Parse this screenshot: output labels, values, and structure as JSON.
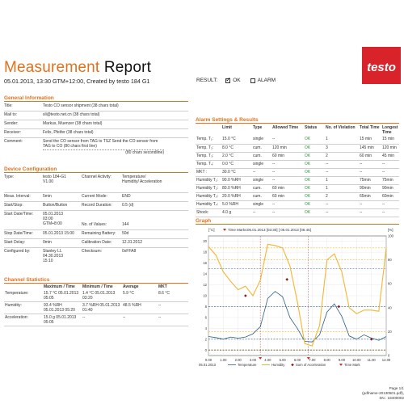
{
  "header": {
    "title_part1": "Measurement",
    "title_part2": "Report",
    "subtitle": "05.01.2013, 13:30 GTM+12:00, Created by testo 184 G1",
    "logo_text": "testo",
    "result_label": "RESULT:",
    "result_ok": "OK",
    "result_alarm": "ALARM"
  },
  "general": {
    "heading": "General Information",
    "rows": [
      {
        "key": "Title:",
        "value": "Testo CO sensor shipment (38 chars total)"
      },
      {
        "key": "Mail to:",
        "value": "sli@testo.net.cn (38 chars total)"
      },
      {
        "key": "Sender:",
        "value": "Markus, Muenzer (38 chars total)"
      },
      {
        "key": "Receiver:",
        "value": "Felix, Pfeifer (38 chars total)"
      },
      {
        "key": "Comment:",
        "value": "Send the CO sensor from TAG to TSZ Send the CO sensor from TAG to CO (80 chars first line)",
        "value2": "(80 chars secondline)"
      }
    ]
  },
  "device": {
    "heading": "Device Configuration",
    "rows": [
      {
        "k1": "Type:",
        "v1": "testo 184-G1 V1.00",
        "k2": "Channel Activity:",
        "v2": "Temperature/ Humidity/ Acceleration"
      },
      {
        "k1": "Meas. Interval:",
        "v1": "5min",
        "k2": "Current Mode:",
        "v2": "END"
      },
      {
        "k1": "Start/Stop:",
        "v1": "Button/Button",
        "k2": "Record Duration:",
        "v2": "0.5 (d)"
      },
      {
        "k1": "Start Date/Time:",
        "v1": "05.01.2013 03:00 GTM+8:00",
        "k2": "No. of Values:",
        "v2": "144"
      },
      {
        "k1": "Stop Date/Time:",
        "v1": "05.01.2013 15:00",
        "k2": "Remaining Battery:",
        "v2": "50d"
      },
      {
        "k1": "Start Delay:",
        "v1": "0min",
        "k2": "Calibration Date:",
        "v2": "12.31.2012"
      },
      {
        "k1": "Configured by:",
        "v1": "Stanley LL 04.30.2013 15:10",
        "k2": "Checksum:",
        "v2": "0xFFA8"
      }
    ]
  },
  "stats": {
    "heading": "Channel Statistics",
    "columns": [
      "",
      "Maximum / Time",
      "Minimum / Time",
      "Average",
      "MKT"
    ],
    "rows": [
      {
        "name": "Temperature:",
        "max": "15.7 °C 05.01.2013 05:05",
        "min": "1.4 °C 05.01.2013 03:20",
        "avg": "5.9 °C",
        "mkt": "8.6 °C"
      },
      {
        "name": "Humidity:",
        "max": "93.4 %RH 05.01.2013 05:20",
        "min": "3.7 %RH 05.01.2013 01:40",
        "avg": "48.5 %RH",
        "mkt": "--"
      },
      {
        "name": "Acceleration:",
        "max": "15.0 g 05.01.2013 05:05",
        "min": "--",
        "avg": "--",
        "mkt": "--"
      }
    ]
  },
  "alarm": {
    "heading": "Alarm  Settings & Results",
    "columns": [
      "",
      "Limit",
      "Type",
      "Allowed Time",
      "Status",
      "No. of Violation",
      "Total Time",
      "Longest Time"
    ],
    "rows": [
      {
        "name": "Temp. T₁:",
        "limit": "15.0 °C",
        "type": "single",
        "allowed": "--",
        "status": "OK",
        "viol": "1",
        "total": "15 min",
        "longest": "15 min"
      },
      {
        "name": "Temp. T₂:",
        "limit": "8.0 °C",
        "type": "cum.",
        "allowed": "120 min",
        "status": "OK",
        "viol": "3",
        "total": "145 min",
        "longest": "120 min"
      },
      {
        "name": "Temp. T₃:",
        "limit": "2.0 °C",
        "type": "cum.",
        "allowed": "60 min",
        "status": "OK",
        "viol": "2",
        "total": "60 min",
        "longest": "45 min"
      },
      {
        "name": "Temp. T₄:",
        "limit": "0.0 °C",
        "type": "single",
        "allowed": "--",
        "status": "OK",
        "viol": "--",
        "total": "--",
        "longest": "--"
      },
      {
        "name": "MKT :",
        "limit": "30.0 °C",
        "type": "--",
        "allowed": "--",
        "status": "OK",
        "viol": "--",
        "total": "--",
        "longest": "--"
      },
      {
        "name": "Humidity T₁:",
        "limit": "90.0 %RH",
        "type": "single",
        "allowed": "--",
        "status": "OK",
        "viol": "1",
        "total": "75min",
        "longest": "75min"
      },
      {
        "name": "Humidity T₂:",
        "limit": "80.0 %RH",
        "type": "cum.",
        "allowed": "60 min",
        "status": "OK",
        "viol": "1",
        "total": "90min",
        "longest": "90min"
      },
      {
        "name": "Humidity T₃:",
        "limit": "20.0 %RH",
        "type": "cum.",
        "allowed": "60 min",
        "status": "OK",
        "viol": "2",
        "total": "65min",
        "longest": "60min"
      },
      {
        "name": "Humidity T₄:",
        "limit": "5.0 %RH",
        "type": "single",
        "allowed": "--",
        "status": "OK",
        "viol": "--",
        "total": "--",
        "longest": "--"
      },
      {
        "name": "Shock:",
        "limit": "4.0 g",
        "type": "--",
        "allowed": "--",
        "status": "OK",
        "viol": "--",
        "total": "--",
        "longest": "--"
      }
    ]
  },
  "graph": {
    "heading": "Graph",
    "time_marks_label": "Time Marks:",
    "time_marks_value": "05.01.2013 [03:30] [  05.01.2013 [06:45]",
    "left_unit": "[°C]",
    "right_unit": "[%]",
    "date_label": "05.01.2013",
    "legend": [
      "Temperature",
      "Humidity",
      "Sum of Acceleration",
      "Time Mark"
    ]
  },
  "chart_data": {
    "type": "line",
    "x": [
      "0.00",
      "0.30",
      "1.00",
      "1.30",
      "2.00",
      "2.30",
      "3.00",
      "3.30",
      "4.00",
      "4.30",
      "5.00",
      "5.30",
      "6.00",
      "6.30",
      "7.00",
      "7.30",
      "8.00",
      "8.30",
      "9.00",
      "9.30",
      "10.00",
      "10.30",
      "11.00",
      "11.30",
      "12.00"
    ],
    "yticks_left": [
      0,
      2,
      4,
      6,
      8,
      10,
      12,
      14,
      16,
      18,
      20
    ],
    "yticks_right": [
      0,
      20,
      40,
      60,
      80,
      100
    ],
    "ylim_left": [
      -1,
      21
    ],
    "ylim_right": [
      0,
      100
    ],
    "series": [
      {
        "name": "Temperature",
        "color": "#2b5f86",
        "values": [
          2.5,
          2.3,
          2.0,
          2.4,
          2.2,
          2.4,
          3.0,
          4.3,
          9.5,
          10.8,
          9.8,
          6.0,
          4.0,
          1.6,
          1.5,
          2.8,
          7.0,
          8.5,
          6.2,
          2.6,
          2.0,
          2.8,
          2.2,
          1.8,
          2.5
        ]
      },
      {
        "name": "Humidity",
        "color": "#f2b631",
        "values": [
          91,
          84,
          70,
          62,
          55,
          58,
          50,
          63,
          93,
          92,
          90,
          75,
          45,
          10,
          8,
          25,
          80,
          85,
          70,
          40,
          35,
          38,
          38,
          37,
          90
        ]
      }
    ],
    "limit_lines_left": [
      15,
      8,
      2,
      0
    ],
    "limit_lines_right": [
      90,
      80,
      20,
      5
    ],
    "acceleration_points": [
      {
        "x": 2.5,
        "y": 10
      },
      {
        "x": 5.3,
        "y": 13
      },
      {
        "x": 8.8,
        "y": 8
      },
      {
        "x": 11.0,
        "y": 2
      }
    ],
    "time_marks": [
      3.5,
      6.75
    ]
  },
  "footer": {
    "page": "Page 1/1",
    "file": "(pdfname-20130501.pdf), SN.: 18400002"
  }
}
